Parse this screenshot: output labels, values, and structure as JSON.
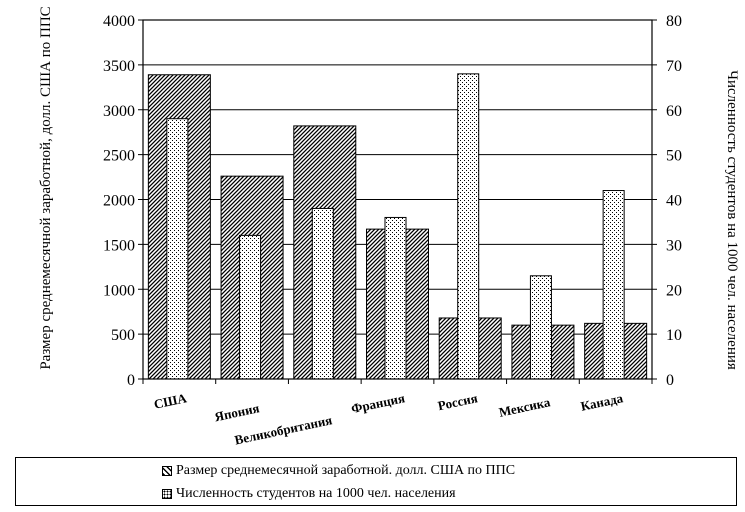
{
  "chart_data": {
    "type": "bar",
    "categories": [
      "США",
      "Япония",
      "Великобритания",
      "Франция",
      "Россия",
      "Мексика",
      "Канада"
    ],
    "series": [
      {
        "name": "Размер среднемесячной заработной. долл. США по ППС",
        "axis": "left",
        "pattern": "hatch",
        "values": [
          3390,
          2260,
          2820,
          1670,
          680,
          600,
          620
        ]
      },
      {
        "name": "Численность студентов на 1000 чел. населения",
        "axis": "right",
        "pattern": "dots",
        "values": [
          58,
          32,
          38,
          36,
          68,
          23,
          42
        ]
      }
    ],
    "ylabel": "Размер среднемесячной заработной, долл. США по ППС",
    "y2label": "Численность студентов на 1000 чел. населения",
    "ylim": [
      0,
      4000
    ],
    "y2lim": [
      0,
      80
    ],
    "yticks": [
      "0",
      "500",
      "1000",
      "1500",
      "2000",
      "2500",
      "3000",
      "3500",
      "4000"
    ],
    "y2ticks": [
      "0",
      "10",
      "20",
      "30",
      "40",
      "50",
      "60",
      "70",
      "80"
    ],
    "grid": true,
    "legend_position": "bottom"
  }
}
